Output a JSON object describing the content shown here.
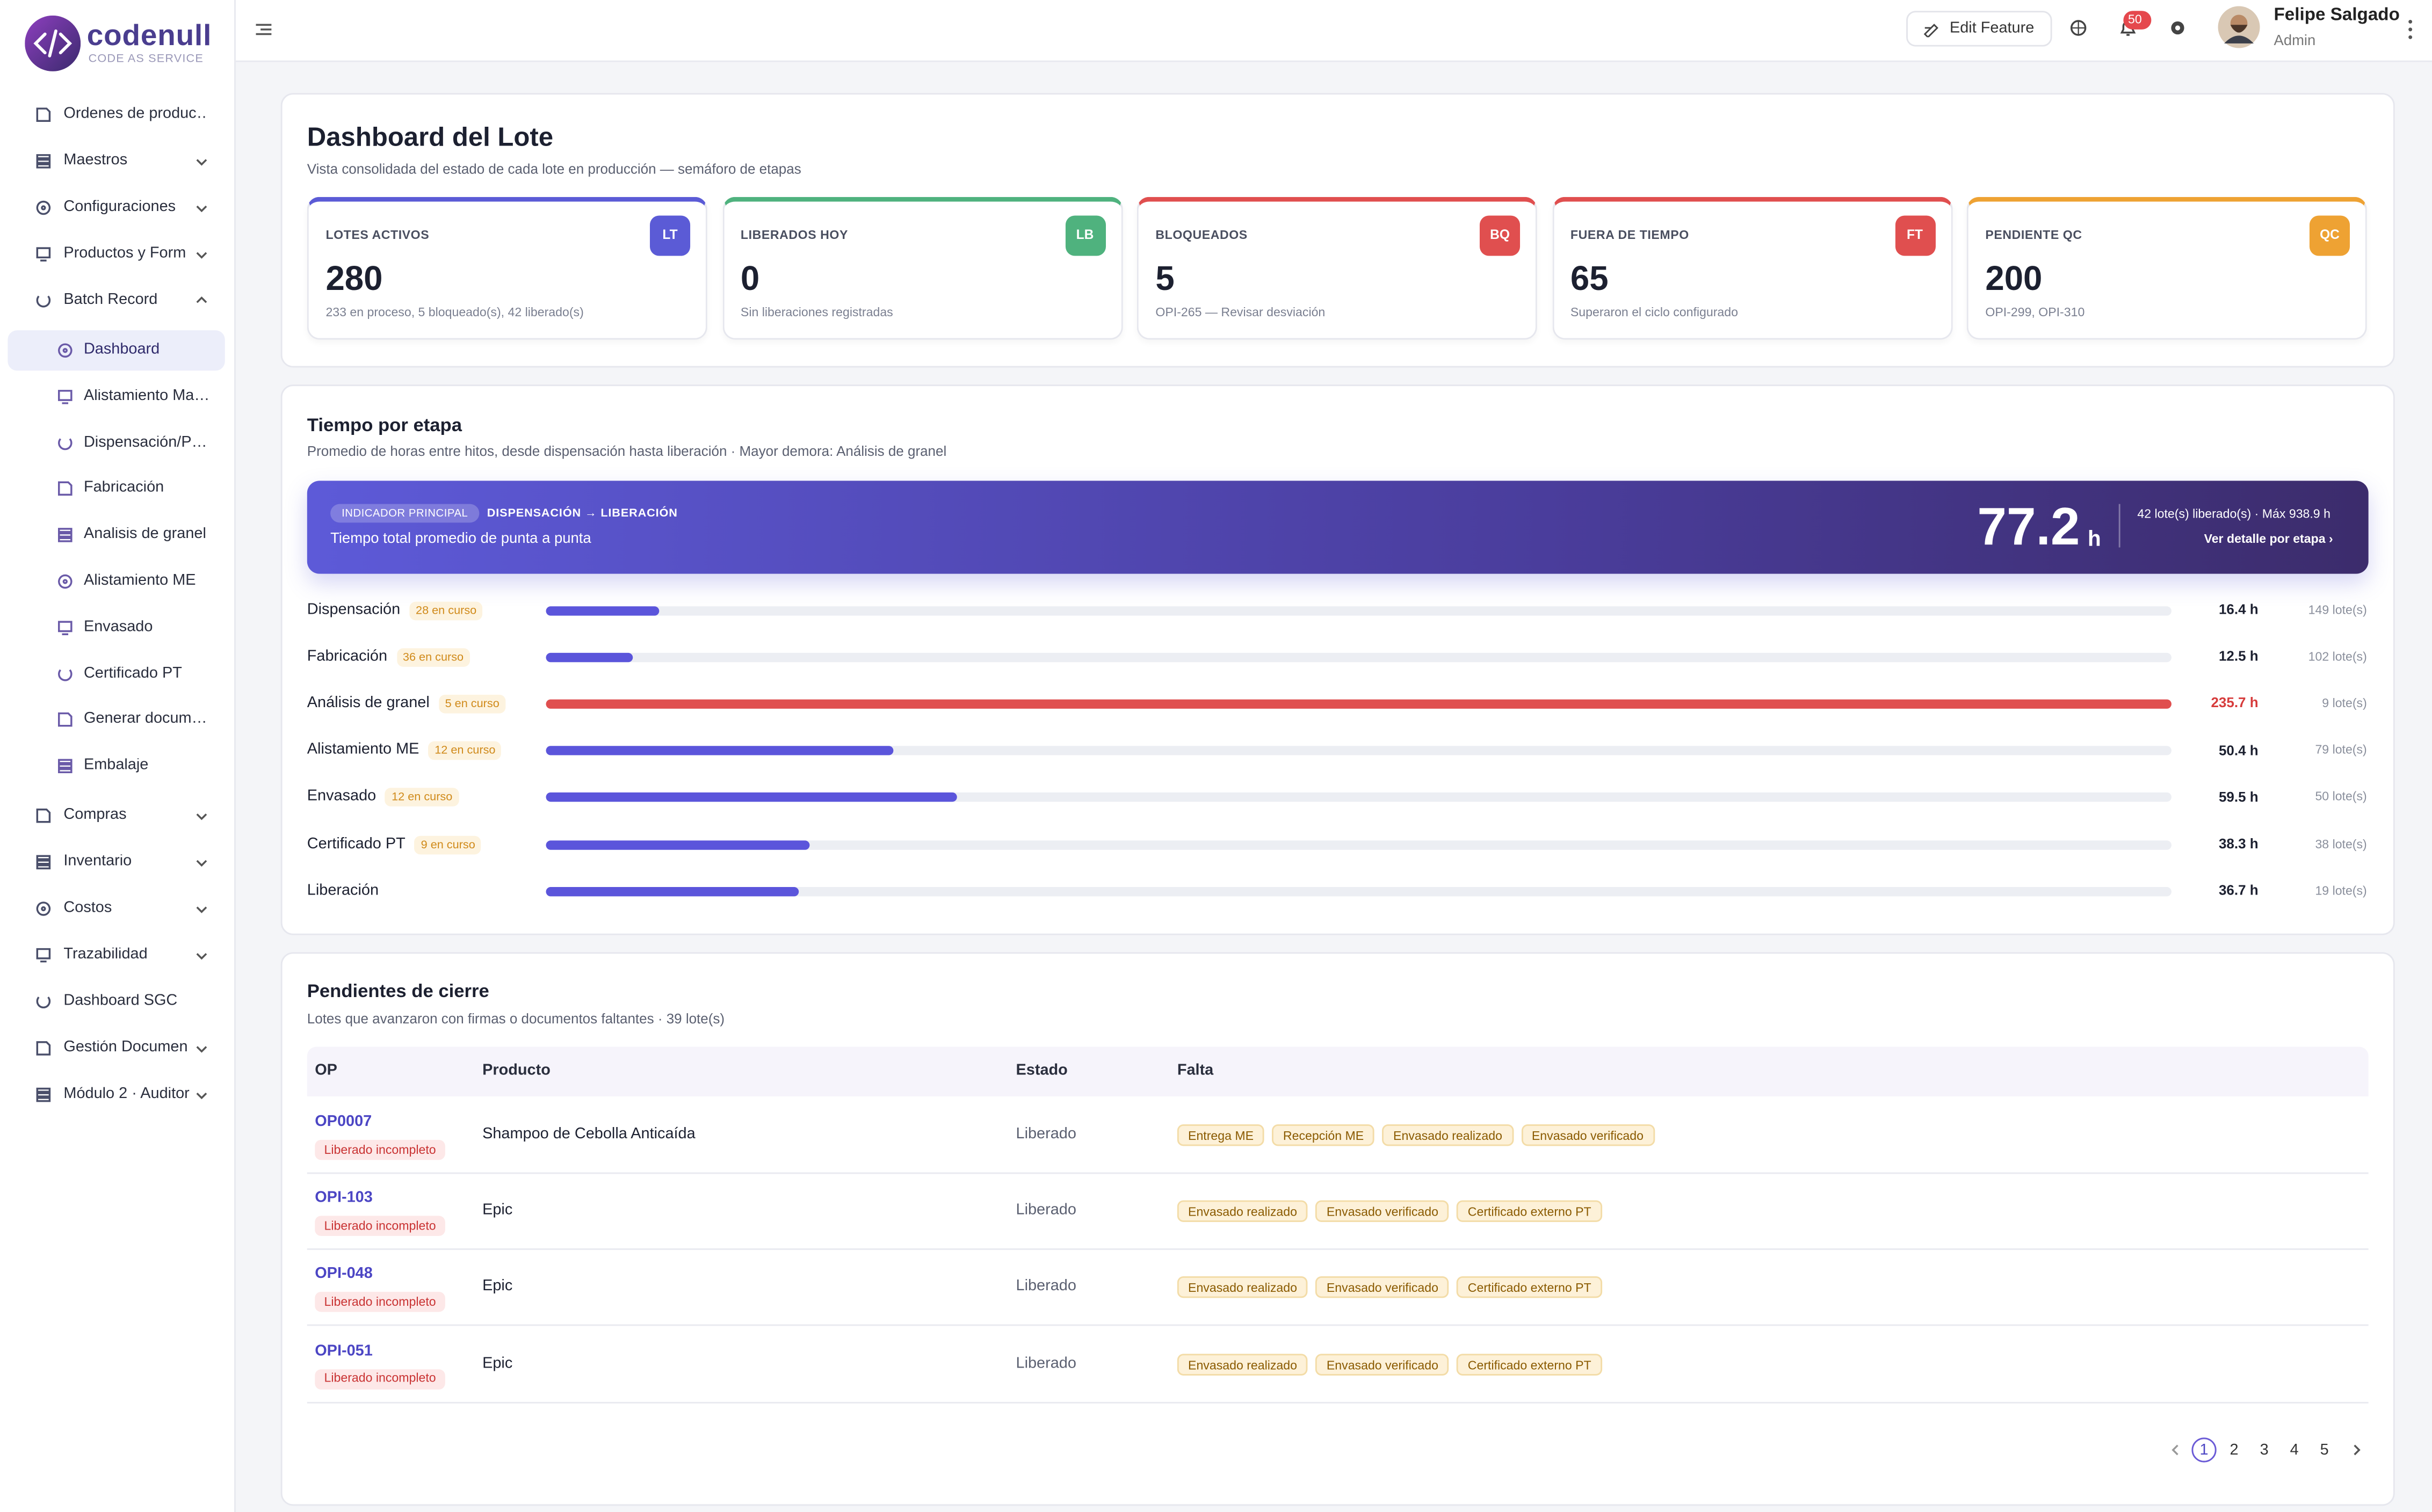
{
  "brand": {
    "name": "codenull",
    "tagline": "CODE AS SERVICE"
  },
  "nav": [
    {
      "label": "Ordenes de produc…"
    },
    {
      "label": "Maestros",
      "collapsible": true
    },
    {
      "label": "Configuraciones",
      "collapsible": true
    },
    {
      "label": "Productos y Form",
      "collapsible": true
    },
    {
      "label": "Batch Record",
      "collapsible": true,
      "expanded": true,
      "children": [
        {
          "label": "Dashboard",
          "active": true
        },
        {
          "label": "Alistamiento Ma…"
        },
        {
          "label": "Dispensación/P…"
        },
        {
          "label": "Fabricación"
        },
        {
          "label": "Analisis de granel"
        },
        {
          "label": "Alistamiento ME"
        },
        {
          "label": "Envasado"
        },
        {
          "label": "Certificado PT"
        },
        {
          "label": "Generar docum…"
        },
        {
          "label": "Embalaje"
        }
      ]
    },
    {
      "label": "Compras",
      "collapsible": true
    },
    {
      "label": "Inventario",
      "collapsible": true
    },
    {
      "label": "Costos",
      "collapsible": true
    },
    {
      "label": "Trazabilidad",
      "collapsible": true
    },
    {
      "label": "Dashboard SGC"
    },
    {
      "label": "Gestión Documen",
      "collapsible": true
    },
    {
      "label": "Módulo 2 · Auditor",
      "collapsible": true
    }
  ],
  "header": {
    "edit_feature": "Edit Feature",
    "notifications": 50,
    "user_name": "Felipe Salgado",
    "user_role": "Admin"
  },
  "summary": {
    "title": "Dashboard del Lote",
    "subtitle": "Vista consolidada del estado de cada lote en producción — semáforo de etapas",
    "kpis": [
      {
        "label": "LOTES ACTIVOS",
        "badge": "LT",
        "color": "#5b5bd6",
        "value": 280,
        "note": "233 en proceso, 5 bloqueado(s), 42 liberado(s)"
      },
      {
        "label": "LIBERADOS HOY",
        "badge": "LB",
        "color": "#4fb27e",
        "value": 0,
        "note": "Sin liberaciones registradas"
      },
      {
        "label": "BLOQUEADOS",
        "badge": "BQ",
        "color": "#e04f4f",
        "value": 5,
        "note": "OPI-265 — Revisar desviación"
      },
      {
        "label": "FUERA DE TIEMPO",
        "badge": "FT",
        "color": "#e04f4f",
        "value": 65,
        "note": "Superaron el ciclo configurado"
      },
      {
        "label": "PENDIENTE QC",
        "badge": "QC",
        "color": "#eea233",
        "value": 200,
        "note": "OPI-299, OPI-310"
      }
    ]
  },
  "stages": {
    "title": "Tiempo por etapa",
    "subtitle": "Promedio de horas entre hitos, desde dispensación hasta liberación · Mayor demora: Análisis de granel",
    "banner": {
      "tag": "INDICADOR PRINCIPAL",
      "route": "DISPENSACIÓN → LIBERACIÓN",
      "description": "Tiempo total promedio de punta a punta",
      "value": 77.2,
      "unit": "h",
      "meta": "42 lote(s) liberado(s) · Máx 938.9 h",
      "link": "Ver detalle por etapa ›"
    },
    "rows": [
      {
        "name": "Dispensación",
        "in_progress": "28 en curso",
        "hours": 16.4,
        "hours_label": "16.4 h",
        "lots": "149 lote(s)"
      },
      {
        "name": "Fabricación",
        "in_progress": "36 en curso",
        "hours": 12.5,
        "hours_label": "12.5 h",
        "lots": "102 lote(s)"
      },
      {
        "name": "Análisis de granel",
        "in_progress": "5 en curso",
        "hours": 235.7,
        "hours_label": "235.7 h",
        "lots": "9 lote(s)"
      },
      {
        "name": "Alistamiento ME",
        "in_progress": "12 en curso",
        "hours": 50.4,
        "hours_label": "50.4 h",
        "lots": "79 lote(s)"
      },
      {
        "name": "Envasado",
        "in_progress": "12 en curso",
        "hours": 59.5,
        "hours_label": "59.5 h",
        "lots": "50 lote(s)"
      },
      {
        "name": "Certificado PT",
        "in_progress": "9 en curso",
        "hours": 38.3,
        "hours_label": "38.3 h",
        "lots": "38 lote(s)"
      },
      {
        "name": "Liberación",
        "hours": 36.7,
        "hours_label": "36.7 h",
        "lots": "19 lote(s)"
      }
    ]
  },
  "pending": {
    "title": "Pendientes de cierre",
    "subtitle": "Lotes que avanzaron con firmas o documentos faltantes · 39 lote(s)",
    "columns": [
      "OP",
      "Producto",
      "Estado",
      "Falta"
    ],
    "rows": [
      {
        "op": "OP0007",
        "tag": "Liberado incompleto",
        "product": "Shampoo de Cebolla Anticaída",
        "status": "Liberado",
        "missing": [
          "Entrega ME",
          "Recepción ME",
          "Envasado realizado",
          "Envasado verificado"
        ]
      },
      {
        "op": "OPI-103",
        "tag": "Liberado incompleto",
        "product": "Epic",
        "status": "Liberado",
        "missing": [
          "Envasado realizado",
          "Envasado verificado",
          "Certificado externo PT"
        ]
      },
      {
        "op": "OPI-048",
        "tag": "Liberado incompleto",
        "product": "Epic",
        "status": "Liberado",
        "missing": [
          "Envasado realizado",
          "Envasado verificado",
          "Certificado externo PT"
        ]
      },
      {
        "op": "OPI-051",
        "tag": "Liberado incompleto",
        "product": "Epic",
        "status": "Liberado",
        "missing": [
          "Envasado realizado",
          "Envasado verificado",
          "Certificado externo PT"
        ]
      }
    ],
    "pages": [
      1,
      2,
      3,
      4,
      5
    ],
    "current_page": 1
  }
}
